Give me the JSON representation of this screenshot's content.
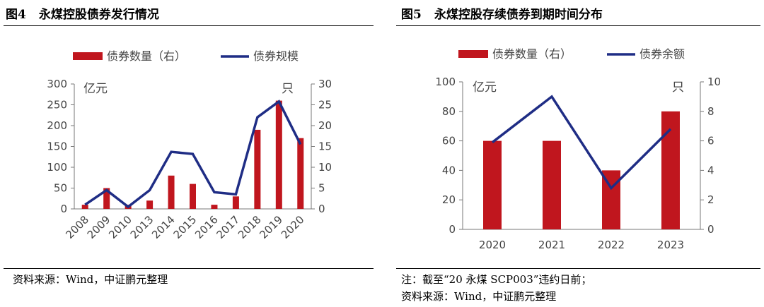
{
  "figures": [
    {
      "number": "图4",
      "title": "永煤控股债券发行情况",
      "notes": [
        "资料来源：Wind，中证鹏元整理"
      ]
    },
    {
      "number": "图5",
      "title": "永煤控股存续债券到期时间分布",
      "notes": [
        "注：截至“20 永煤 SCP003”违约日前；",
        "资料来源：Wind，中证鹏元整理"
      ]
    }
  ],
  "colors": {
    "bar": "#c0161e",
    "line": "#1f2d85",
    "axis": "#444444",
    "rule": "#000000"
  },
  "chart_data": [
    {
      "type": "bar",
      "categories": [
        "2008",
        "2009",
        "2010",
        "2013",
        "2014",
        "2015",
        "2016",
        "2017",
        "2018",
        "2019",
        "2020"
      ],
      "series": [
        {
          "name": "债券数量（右）",
          "type": "bar",
          "axis": "right",
          "values": [
            1,
            5,
            1,
            2,
            8,
            6,
            1,
            3,
            19,
            26,
            17
          ]
        },
        {
          "name": "债券规模",
          "type": "line",
          "axis": "left",
          "values": [
            10,
            45,
            5,
            45,
            137,
            132,
            40,
            35,
            220,
            258,
            155
          ]
        }
      ],
      "left_axis": {
        "unit": "亿元",
        "ylim": [
          0,
          300
        ],
        "ticks": [
          0,
          50,
          100,
          150,
          200,
          250,
          300
        ]
      },
      "right_axis": {
        "unit": "只",
        "ylim": [
          0,
          30
        ],
        "ticks": [
          0,
          5,
          10,
          15,
          20,
          25,
          30
        ]
      },
      "x_tick_rotation": -45,
      "legend": "top-center",
      "grid": false
    },
    {
      "type": "bar",
      "categories": [
        "2020",
        "2021",
        "2022",
        "2023"
      ],
      "series": [
        {
          "name": "债券数量（右）",
          "type": "bar",
          "axis": "right",
          "values": [
            6,
            6,
            4,
            8
          ]
        },
        {
          "name": "债券余额",
          "type": "line",
          "axis": "left",
          "values": [
            59,
            90,
            28,
            68
          ]
        }
      ],
      "left_axis": {
        "unit": "亿元",
        "ylim": [
          0,
          100
        ],
        "ticks": [
          0,
          20,
          40,
          60,
          80,
          100
        ]
      },
      "right_axis": {
        "unit": "只",
        "ylim": [
          0,
          10
        ],
        "ticks": [
          0,
          2,
          4,
          6,
          8,
          10
        ]
      },
      "x_tick_rotation": 0,
      "legend": "top-center",
      "grid": false
    }
  ]
}
